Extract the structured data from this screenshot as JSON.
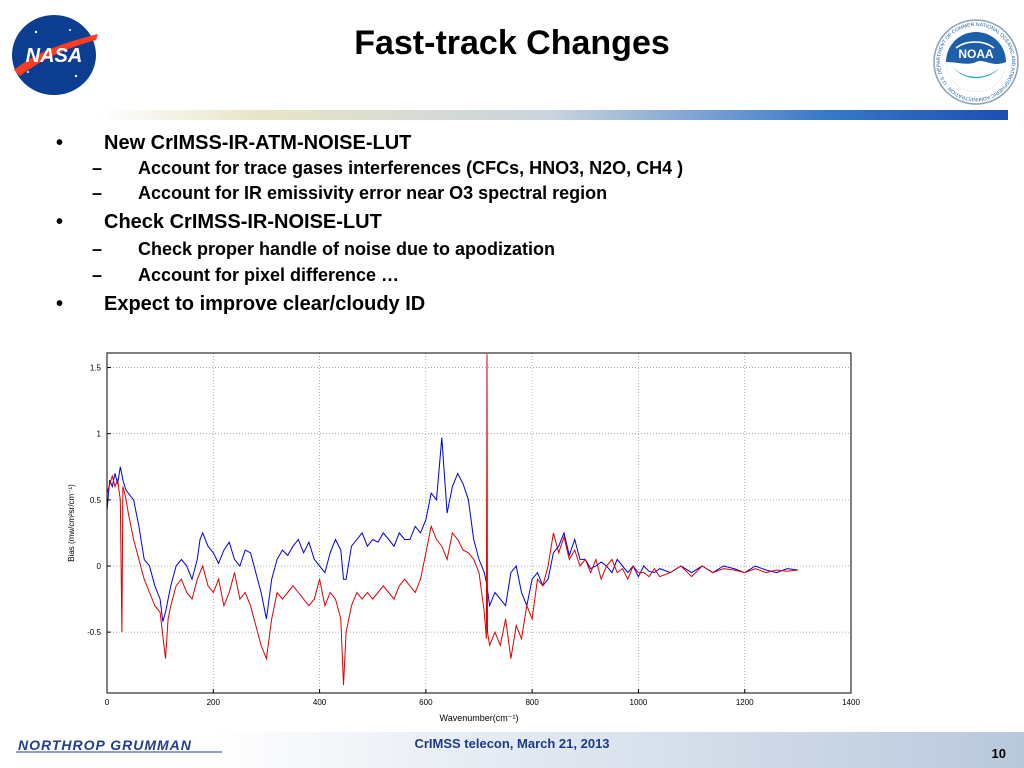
{
  "slide": {
    "title": "Fast-track Changes",
    "page_number": "10",
    "footer": "CrIMSS telecon, March 21, 2013",
    "nasa_logo_text": "NASA",
    "noaa_logo_text": "NOAA",
    "noaa_ring_text": "NATIONAL OCEANIC AND ATMOSPHERIC ADMINISTRATION · U.S. DEPARTMENT OF COMMERCE",
    "ng_logo_text": "NORTHROP GRUMMAN"
  },
  "bullets": [
    {
      "marker": "•",
      "text": "New CrIMSS-IR-ATM-NOISE-LUT",
      "sub": [
        {
          "marker": "–",
          "text": "Account for trace gases interferences (CFCs, HNO3, N2O, CH4 )"
        },
        {
          "marker": "–",
          "text": "Account for IR emissivity error near O3 spectral region"
        }
      ]
    },
    {
      "marker": "•",
      "text": "Check CrIMSS-IR-NOISE-LUT",
      "sub": [
        {
          "marker": "–",
          "text": "Check proper handle of noise due to apodization"
        },
        {
          "marker": "–",
          "text": "Account for pixel difference …"
        }
      ]
    },
    {
      "marker": "•",
      "text": "Expect to improve clear/cloudy ID",
      "sub": []
    }
  ],
  "colors": {
    "series_blue": "#0000dd",
    "series_red": "#dd0000",
    "header_blue": "#1c4fb4"
  },
  "chart_data": {
    "type": "line",
    "title": "",
    "xlabel": "Wavenumber(cm⁻¹)",
    "ylabel": "Bias (mw/cm²sr/cm⁻¹)",
    "xlim": [
      0,
      1400
    ],
    "ylim": [
      -0.96,
      1.61
    ],
    "xticks": [
      0,
      200,
      400,
      600,
      800,
      1000,
      1200,
      1400
    ],
    "yticks": [
      -0.5,
      0,
      0.5,
      1,
      1.5
    ],
    "grid": true,
    "legend": "none",
    "series": [
      {
        "color": "#0000dd",
        "x": [
          0,
          5,
          10,
          15,
          20,
          25,
          30,
          35,
          40,
          50,
          60,
          70,
          80,
          90,
          100,
          105,
          110,
          115,
          120,
          130,
          140,
          150,
          160,
          170,
          175,
          180,
          190,
          200,
          210,
          220,
          230,
          240,
          250,
          260,
          270,
          280,
          290,
          300,
          310,
          320,
          330,
          340,
          350,
          360,
          370,
          380,
          390,
          400,
          410,
          420,
          430,
          440,
          445,
          450,
          460,
          470,
          480,
          490,
          500,
          510,
          520,
          530,
          540,
          550,
          560,
          570,
          580,
          590,
          600,
          610,
          620,
          630,
          640,
          650,
          660,
          670,
          680,
          690,
          700,
          710,
          715,
          720,
          730,
          740,
          750,
          760,
          770,
          780,
          790,
          800,
          810,
          820,
          830,
          840,
          850,
          860,
          870,
          880,
          890,
          900,
          910,
          920,
          930,
          940,
          950,
          960,
          970,
          980,
          990,
          1000,
          1010,
          1020,
          1030,
          1040,
          1060,
          1080,
          1100,
          1120,
          1140,
          1160,
          1180,
          1200,
          1220,
          1240,
          1260,
          1280,
          1300
        ],
        "y": [
          0.42,
          0.65,
          0.6,
          0.7,
          0.62,
          0.75,
          0.65,
          0.58,
          0.55,
          0.5,
          0.3,
          0.05,
          0.0,
          -0.15,
          -0.25,
          -0.42,
          -0.35,
          -0.25,
          -0.15,
          0.0,
          0.05,
          0.0,
          -0.1,
          0.05,
          0.2,
          0.25,
          0.15,
          0.1,
          0.02,
          0.12,
          0.18,
          0.05,
          0.0,
          0.12,
          0.1,
          -0.05,
          -0.2,
          -0.4,
          -0.1,
          0.05,
          0.12,
          0.08,
          0.15,
          0.2,
          0.1,
          0.18,
          0.05,
          0.0,
          -0.05,
          0.1,
          0.2,
          0.12,
          -0.1,
          -0.1,
          0.15,
          0.2,
          0.25,
          0.15,
          0.2,
          0.18,
          0.25,
          0.2,
          0.15,
          0.25,
          0.2,
          0.2,
          0.3,
          0.25,
          0.35,
          0.55,
          0.5,
          0.97,
          0.4,
          0.6,
          0.7,
          0.62,
          0.5,
          0.2,
          0.05,
          -0.05,
          -0.15,
          -0.3,
          -0.2,
          -0.25,
          -0.3,
          -0.05,
          0.0,
          -0.2,
          -0.3,
          -0.1,
          -0.05,
          -0.15,
          -0.1,
          0.1,
          0.15,
          0.25,
          0.08,
          0.2,
          0.05,
          0.05,
          -0.02,
          0.0,
          0.03,
          0.0,
          -0.05,
          0.05,
          0.0,
          -0.05,
          0.0,
          -0.08,
          0.0,
          -0.04,
          -0.05,
          -0.02,
          -0.05,
          0.0,
          -0.05,
          0.0,
          -0.05,
          0.0,
          -0.02,
          -0.05,
          0.0,
          -0.03,
          -0.05,
          -0.02,
          -0.03
        ]
      },
      {
        "color": "#dd0000",
        "x": [
          0,
          5,
          10,
          15,
          20,
          25,
          28,
          30,
          35,
          40,
          50,
          60,
          70,
          80,
          90,
          100,
          110,
          115,
          120,
          130,
          140,
          150,
          160,
          170,
          175,
          180,
          190,
          200,
          210,
          220,
          230,
          240,
          250,
          260,
          270,
          280,
          290,
          300,
          310,
          320,
          330,
          340,
          350,
          360,
          370,
          380,
          390,
          400,
          410,
          420,
          430,
          440,
          445,
          450,
          460,
          470,
          480,
          490,
          500,
          510,
          520,
          530,
          540,
          550,
          560,
          570,
          580,
          590,
          600,
          610,
          620,
          630,
          640,
          650,
          660,
          670,
          680,
          690,
          700,
          710,
          714,
          715,
          716,
          720,
          730,
          740,
          750,
          760,
          770,
          780,
          790,
          800,
          810,
          820,
          830,
          840,
          850,
          860,
          870,
          880,
          890,
          900,
          910,
          920,
          930,
          940,
          950,
          960,
          970,
          980,
          990,
          1000,
          1010,
          1020,
          1030,
          1040,
          1060,
          1080,
          1100,
          1120,
          1140,
          1160,
          1180,
          1200,
          1220,
          1240,
          1260,
          1280,
          1300
        ],
        "y": [
          0.55,
          0.62,
          0.68,
          0.6,
          0.65,
          0.5,
          -0.5,
          0.6,
          0.52,
          0.4,
          0.2,
          0.05,
          -0.1,
          -0.2,
          -0.3,
          -0.35,
          -0.7,
          -0.4,
          -0.3,
          -0.15,
          -0.1,
          -0.2,
          -0.25,
          -0.1,
          -0.05,
          0.0,
          -0.15,
          -0.2,
          -0.1,
          -0.3,
          -0.2,
          -0.05,
          -0.25,
          -0.2,
          -0.3,
          -0.45,
          -0.6,
          -0.7,
          -0.4,
          -0.2,
          -0.25,
          -0.2,
          -0.15,
          -0.2,
          -0.25,
          -0.3,
          -0.25,
          -0.1,
          -0.3,
          -0.2,
          -0.25,
          -0.4,
          -0.9,
          -0.5,
          -0.3,
          -0.2,
          -0.25,
          -0.2,
          -0.25,
          -0.2,
          -0.15,
          -0.2,
          -0.25,
          -0.15,
          -0.1,
          -0.15,
          -0.2,
          -0.1,
          0.1,
          0.3,
          0.2,
          0.15,
          0.05,
          0.25,
          0.2,
          0.12,
          0.1,
          0.05,
          -0.05,
          -0.35,
          -0.55,
          1.6,
          -0.5,
          -0.6,
          -0.5,
          -0.6,
          -0.4,
          -0.7,
          -0.45,
          -0.55,
          -0.3,
          -0.4,
          -0.1,
          -0.15,
          0.0,
          0.25,
          0.1,
          0.22,
          0.05,
          0.12,
          0.0,
          0.05,
          -0.05,
          0.05,
          -0.1,
          0.0,
          0.05,
          -0.05,
          -0.02,
          -0.1,
          0.0,
          -0.05,
          -0.05,
          -0.08,
          -0.02,
          -0.08,
          -0.05,
          0.0,
          -0.08,
          0.0,
          -0.05,
          -0.02,
          -0.03,
          -0.05,
          -0.02,
          -0.05,
          -0.03,
          -0.04,
          -0.03
        ]
      }
    ]
  }
}
